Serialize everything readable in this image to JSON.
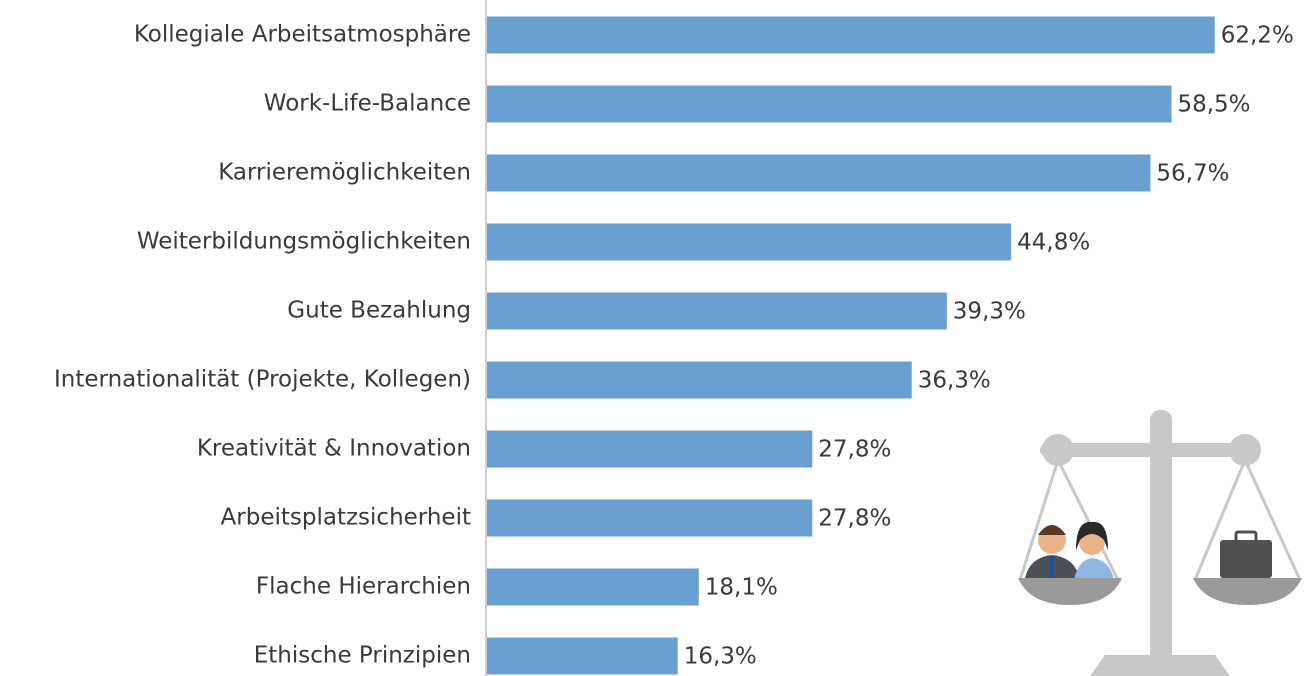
{
  "chart_data": {
    "type": "bar",
    "orientation": "horizontal",
    "categories": [
      "Kollegiale Arbeitsatmosphäre",
      "Work-Life-Balance",
      "Karrieremöglichkeiten",
      "Weiterbildungsmöglichkeiten",
      "Gute Bezahlung",
      "Internationalität (Projekte, Kollegen)",
      "Kreativität & Innovation",
      "Arbeitsplatzsicherheit",
      "Flache Hierarchien",
      "Ethische Prinzipien"
    ],
    "values": [
      62.2,
      58.5,
      56.7,
      44.8,
      39.3,
      36.3,
      27.8,
      27.8,
      18.1,
      16.3
    ],
    "value_labels": [
      "62,2%",
      "58,5%",
      "56,7%",
      "44,8%",
      "39,3%",
      "36,3%",
      "27,8%",
      "27,8%",
      "18,1%",
      "16,3%"
    ],
    "color": "#6a9fd2",
    "xlim": [
      0,
      70
    ]
  }
}
